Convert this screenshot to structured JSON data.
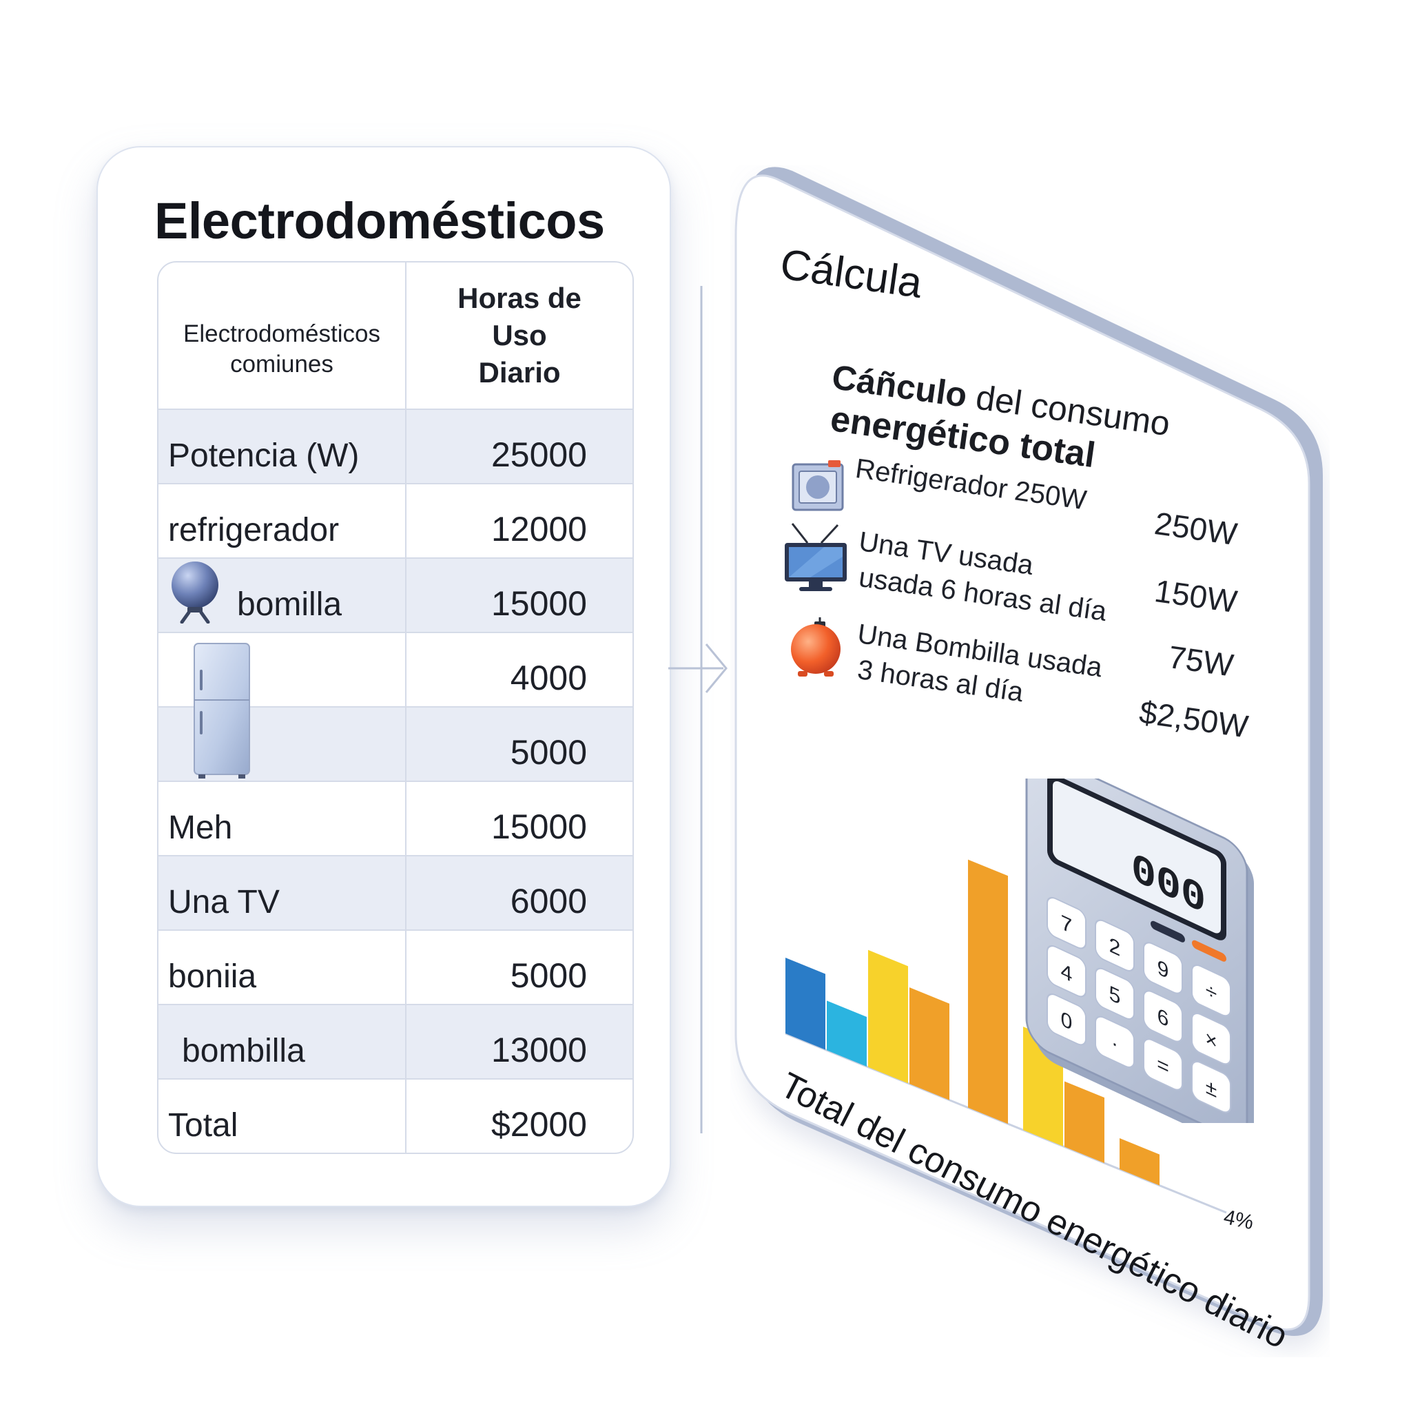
{
  "left_card": {
    "title": "Electrodomésticos",
    "header": {
      "col1_line1": "Electrodomésticos",
      "col1_line2": "comiunes",
      "col2_line1": "Horas de",
      "col2_line2": "Uso",
      "col2_line3": "Diario"
    },
    "rows": [
      {
        "label": "Potencia (W)",
        "value": "25000"
      },
      {
        "label": "refrigerador",
        "value": "12000"
      },
      {
        "label": "bomilla",
        "value": "15000"
      },
      {
        "label": "",
        "value": "4000"
      },
      {
        "label": "",
        "value": "5000"
      },
      {
        "label": "Meh",
        "value": "15000"
      },
      {
        "label": "Una TV",
        "value": "6000"
      },
      {
        "label": "boniia",
        "value": "5000"
      },
      {
        "label": "bombilla",
        "value": "13000"
      },
      {
        "label": "Total",
        "value": "$2000"
      }
    ]
  },
  "right_panel": {
    "title": "Cálcula",
    "subtitle_bold": "Cáñculo",
    "subtitle_rest": " del consumo",
    "subtitle_line2": "energético total",
    "items": [
      {
        "icon": "refrigerator-icon",
        "line1": "Refrigerador 250W",
        "line2": "",
        "value": "250W"
      },
      {
        "icon": "tv-icon",
        "line1": "Una TV usada",
        "line2": "usada 6 horas al día",
        "value": "150W"
      },
      {
        "icon": "bulb-icon",
        "line1": "Una Bombilla usada",
        "line2": "3 horas al día",
        "value": "75W"
      }
    ],
    "total_value": "$2,50W",
    "footer_label": "Total del consumo energético diario",
    "footer_pct": "4%",
    "calculator": {
      "display": "000",
      "keys": [
        "7",
        "2",
        "9",
        "÷",
        "4",
        "5",
        "6",
        "×",
        "0",
        "·",
        "=",
        "±"
      ]
    }
  },
  "colors": {
    "bar_blue": "#2a7cc7",
    "bar_cyan": "#2bb4e0",
    "bar_yellow": "#f7d22b",
    "bar_orange": "#f0a029",
    "panel_edge": "#aab6cf"
  }
}
